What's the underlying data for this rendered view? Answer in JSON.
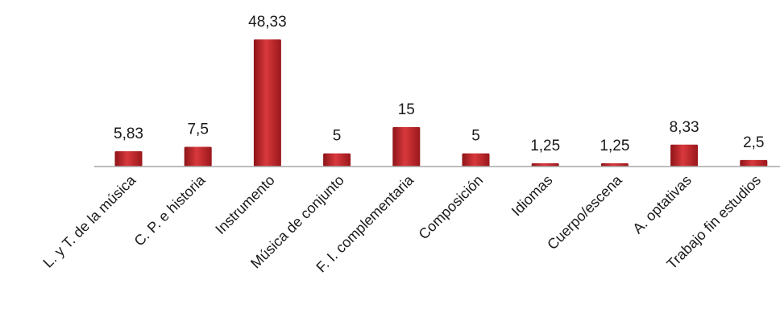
{
  "chart_data": {
    "type": "bar",
    "title": "",
    "xlabel": "",
    "ylabel": "",
    "categories": [
      "L. y T. de la música",
      "C. P. e historia",
      "Instrumento",
      "Música de conjunto",
      "F. I. complementaria",
      "Composición",
      "Idiomas",
      "Cuerpo/escena",
      "A. optativas",
      "Trabajo fin estudios"
    ],
    "values": [
      5.83,
      7.5,
      48.33,
      5,
      15,
      5,
      1.25,
      1.25,
      8.33,
      2.5
    ],
    "data_labels": [
      "5,83",
      "7,5",
      "48,33",
      "5",
      "15",
      "5",
      "1,25",
      "1,25",
      "8,33",
      "2,5"
    ],
    "ylim": [
      0,
      50
    ],
    "grid": false,
    "legend": "none",
    "bar_color": "#c0282c"
  }
}
